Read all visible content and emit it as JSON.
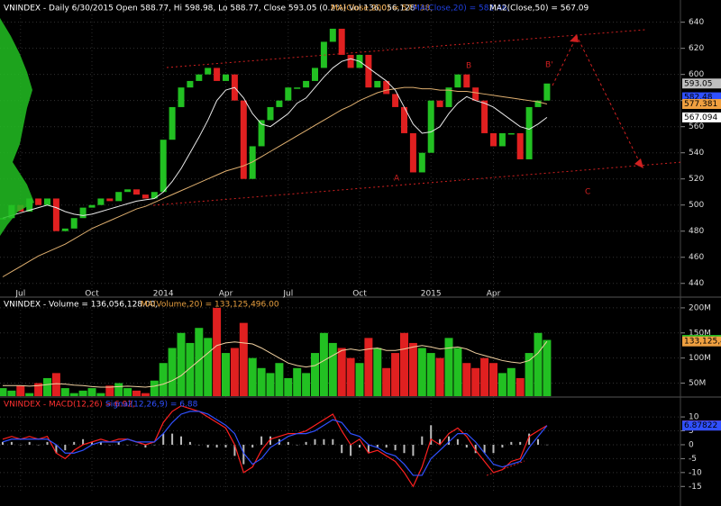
{
  "chart_data": [
    {
      "type": "candlestick",
      "title_parts": [
        {
          "text": "VNINDEX - Daily 6/30/2015 Open 588.77, Hi 598.98, Lo 588.77, Close 593.05 (0.2%) Vol 136,056,128",
          "color": "#ffffff"
        },
        {
          "text": "MA(Close,200) = 577.38,",
          "color": "#e8a040"
        },
        {
          "text": "MA(Close,20) = 582.48,",
          "color": "#2040e0"
        },
        {
          "text": "MA2(Close,50) = 567.09",
          "color": "#ffffff"
        }
      ],
      "categories": [
        null,
        null,
        "Jul",
        null,
        null,
        null,
        null,
        null,
        null,
        null,
        "Oct",
        null,
        null,
        null,
        null,
        null,
        null,
        null,
        "2014",
        null,
        null,
        null,
        null,
        null,
        null,
        "Apr",
        null,
        null,
        null,
        null,
        null,
        null,
        "Jul",
        null,
        null,
        null,
        null,
        null,
        null,
        null,
        "Oct",
        null,
        null,
        null,
        null,
        null,
        null,
        null,
        "2015",
        null,
        null,
        null,
        null,
        null,
        null,
        "Apr",
        null,
        null,
        null,
        null,
        null,
        null
      ],
      "up_color": "#22c022",
      "down_color": "#e02020",
      "series": [
        {
          "color": "#22c022",
          "values": [
            490,
            500,
            495,
            505,
            500,
            505,
            480,
            482,
            490,
            498,
            500,
            505,
            503,
            510,
            512,
            508,
            505,
            510,
            550,
            575,
            590,
            595,
            600,
            605,
            595,
            600,
            580,
            520,
            545,
            565,
            575,
            580,
            590,
            590,
            595,
            605,
            625,
            635,
            615,
            605,
            615,
            590,
            595,
            585,
            575,
            555,
            525,
            540,
            580,
            575,
            590,
            600,
            590,
            580,
            555,
            545,
            555,
            555,
            535,
            575,
            580,
            593.05
          ]
        },
        {
          "color": "#e0b070",
          "values": [
            445,
            449,
            453,
            457,
            461,
            464,
            467,
            470,
            474,
            478,
            482,
            485,
            488,
            491,
            494,
            497,
            499,
            502,
            505,
            508,
            511,
            514,
            517,
            520,
            523,
            526,
            528,
            530,
            533,
            537,
            541,
            545,
            549,
            553,
            557,
            561,
            565,
            569,
            573,
            576,
            580,
            583,
            586,
            588,
            589,
            590,
            590,
            589,
            589,
            588,
            588,
            587,
            587,
            586,
            585,
            584,
            583,
            582,
            581,
            580,
            579,
            577.38
          ]
        },
        {
          "color": "#e8e8e8",
          "values": [
            490,
            492,
            494,
            496,
            498,
            500,
            498,
            495,
            493,
            492,
            493,
            495,
            497,
            499,
            501,
            503,
            504,
            505,
            510,
            518,
            528,
            540,
            552,
            565,
            580,
            588,
            590,
            582,
            570,
            562,
            560,
            565,
            570,
            578,
            582,
            590,
            598,
            605,
            610,
            612,
            610,
            605,
            600,
            595,
            588,
            575,
            562,
            555,
            556,
            560,
            570,
            578,
            583,
            580,
            578,
            575,
            570,
            565,
            560,
            558,
            562,
            567.09
          ]
        }
      ],
      "ylim": [
        435,
        657
      ],
      "yticks": [
        440,
        460,
        480,
        500,
        520,
        540,
        560,
        580,
        600,
        620,
        640
      ],
      "tags": [
        {
          "value": 593.05,
          "label": "593.05",
          "color": "#c0c0c0"
        },
        {
          "value": 582.48,
          "label": "582.48",
          "color": "#3050ff"
        },
        {
          "value": 577.381,
          "label": "577.381",
          "color": "#f0a040"
        },
        {
          "value": 567.094,
          "label": "567.094",
          "color": "#ffffff"
        }
      ],
      "annotations": [
        "A",
        "B",
        "B'",
        "C"
      ]
    },
    {
      "type": "bar",
      "title_parts": [
        {
          "text": "VNINDEX - Volume = 136,056,128.00,",
          "color": "#ffffff"
        },
        {
          "text": "MA(Volume,20) = 133,125,496.00",
          "color": "#e8a040"
        }
      ],
      "values": [
        40,
        35,
        45,
        30,
        50,
        60,
        70,
        40,
        30,
        35,
        40,
        30,
        45,
        50,
        40,
        35,
        30,
        55,
        90,
        120,
        150,
        130,
        160,
        140,
        200,
        110,
        120,
        170,
        100,
        80,
        70,
        90,
        60,
        80,
        70,
        110,
        150,
        130,
        120,
        100,
        90,
        140,
        120,
        80,
        110,
        150,
        130,
        120,
        110,
        100,
        140,
        120,
        90,
        80,
        100,
        90,
        70,
        80,
        60,
        110,
        150,
        136.056128
      ],
      "ma": {
        "color": "#f0d0a0",
        "values": [
          45,
          45,
          45,
          44,
          45,
          47,
          49,
          48,
          46,
          45,
          43,
          42,
          42,
          43,
          44,
          43,
          42,
          44,
          48,
          55,
          65,
          80,
          95,
          110,
          125,
          130,
          132,
          130,
          128,
          120,
          110,
          100,
          90,
          85,
          82,
          85,
          95,
          105,
          115,
          118,
          115,
          118,
          120,
          115,
          115,
          118,
          122,
          125,
          122,
          118,
          120,
          122,
          118,
          110,
          105,
          100,
          95,
          92,
          90,
          95,
          110,
          133.125496
        ]
      },
      "ylim": [
        24,
        216
      ],
      "yticks": [
        {
          "value": 50,
          "label": "50M"
        },
        {
          "value": 100,
          "label": "100M"
        },
        {
          "value": 150,
          "label": "150M"
        },
        {
          "value": 200,
          "label": "200M"
        }
      ],
      "tags": [
        {
          "value": 136.056128,
          "label": "136,056,1",
          "color": "#22c022"
        },
        {
          "value": 133.125496,
          "label": "133,125,4",
          "color": "#f0a040"
        }
      ]
    },
    {
      "type": "line",
      "title_parts": [
        {
          "text": "VNINDEX - MACD(12,26) = 6.92,",
          "color": "#ff3030"
        },
        {
          "text": "Signal(12,26,9) = 6.88",
          "color": "#3050ff"
        }
      ],
      "series": [
        {
          "color": "#ff2020",
          "values": [
            2,
            3,
            2,
            3,
            2,
            3,
            -3,
            -5,
            -2,
            0,
            1,
            2,
            1,
            2,
            2,
            1,
            0,
            1,
            8,
            12,
            14,
            13,
            12,
            10,
            8,
            6,
            0,
            -10,
            -8,
            -2,
            2,
            3,
            4,
            4,
            5,
            7,
            9,
            11,
            5,
            0,
            2,
            -3,
            -2,
            -4,
            -6,
            -10,
            -15,
            -8,
            2,
            0,
            4,
            6,
            3,
            -2,
            -6,
            -10,
            -9,
            -6,
            -5,
            3,
            5,
            6.92
          ]
        },
        {
          "color": "#3050ff",
          "values": [
            1,
            2,
            2,
            2,
            2,
            2,
            0,
            -3,
            -3,
            -2,
            0,
            1,
            1,
            1,
            2,
            1,
            1,
            1,
            4,
            8,
            11,
            12,
            12,
            11,
            9,
            7,
            4,
            -3,
            -7,
            -5,
            -1,
            1,
            3,
            4,
            4,
            5,
            7,
            9,
            8,
            4,
            3,
            0,
            -1,
            -3,
            -4,
            -7,
            -11,
            -11,
            -5,
            -2,
            1,
            4,
            4,
            1,
            -3,
            -7,
            -8,
            -7,
            -6,
            -1,
            3,
            6.88
          ]
        }
      ],
      "ylim": [
        -17.5,
        16.5
      ],
      "yticks": [
        -15,
        -10,
        -5,
        0,
        5,
        10
      ],
      "tags": [
        {
          "value": 6.92366,
          "label": "6.92366",
          "color": "#ff2020"
        },
        {
          "value": 6.87822,
          "label": "6.87822",
          "color": "#3050ff"
        }
      ]
    }
  ]
}
